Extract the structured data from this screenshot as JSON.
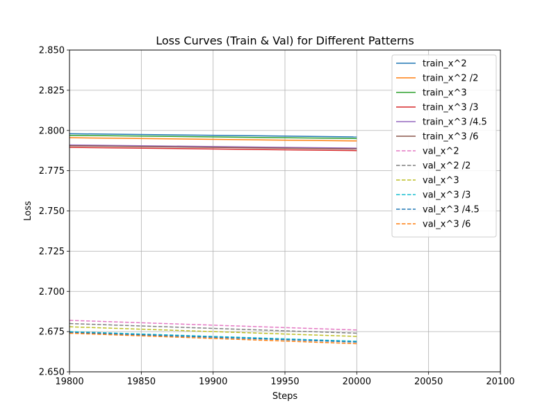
{
  "chart_data": {
    "type": "line",
    "title": "Loss Curves (Train & Val) for Different Patterns",
    "xlabel": "Steps",
    "ylabel": "Loss",
    "xlim": [
      19800,
      20100
    ],
    "ylim": [
      2.65,
      2.85
    ],
    "xticks": [
      19800,
      19850,
      19900,
      19950,
      20000,
      20050,
      20100
    ],
    "xtick_labels": [
      "19800",
      "19850",
      "19900",
      "19950",
      "20000",
      "20050",
      "20100"
    ],
    "yticks": [
      2.65,
      2.675,
      2.7,
      2.725,
      2.75,
      2.775,
      2.8,
      2.825,
      2.85
    ],
    "ytick_labels": [
      "2.650",
      "2.675",
      "2.700",
      "2.725",
      "2.750",
      "2.775",
      "2.800",
      "2.825",
      "2.850"
    ],
    "grid": true,
    "legend_position": "top-right",
    "series": [
      {
        "name": "train_x^2",
        "color": "#1f77b4",
        "dash": false,
        "x": [
          19800,
          20000
        ],
        "y": [
          2.798,
          2.796
        ]
      },
      {
        "name": "train_x^2 /2",
        "color": "#ff7f0e",
        "dash": false,
        "x": [
          19800,
          20000
        ],
        "y": [
          2.7955,
          2.7935
        ]
      },
      {
        "name": "train_x^3",
        "color": "#2ca02c",
        "dash": false,
        "x": [
          19800,
          20000
        ],
        "y": [
          2.797,
          2.795
        ]
      },
      {
        "name": "train_x^3 /3",
        "color": "#d62728",
        "dash": false,
        "x": [
          19800,
          20000
        ],
        "y": [
          2.7895,
          2.7875
        ]
      },
      {
        "name": "train_x^3 /4.5",
        "color": "#9467bd",
        "dash": false,
        "x": [
          19800,
          20000
        ],
        "y": [
          2.791,
          2.789
        ]
      },
      {
        "name": "train_x^3 /6",
        "color": "#8c564b",
        "dash": false,
        "x": [
          19800,
          20000
        ],
        "y": [
          2.7905,
          2.7885
        ]
      },
      {
        "name": "val_x^2",
        "color": "#e377c2",
        "dash": true,
        "x": [
          19800,
          20000
        ],
        "y": [
          2.682,
          2.676
        ]
      },
      {
        "name": "val_x^2 /2",
        "color": "#7f7f7f",
        "dash": true,
        "x": [
          19800,
          20000
        ],
        "y": [
          2.68,
          2.674
        ]
      },
      {
        "name": "val_x^3",
        "color": "#bcbd22",
        "dash": true,
        "x": [
          19800,
          20000
        ],
        "y": [
          2.678,
          2.672
        ]
      },
      {
        "name": "val_x^3 /3",
        "color": "#17becf",
        "dash": true,
        "x": [
          19800,
          20000
        ],
        "y": [
          2.675,
          2.669
        ]
      },
      {
        "name": "val_x^3 /4.5",
        "color": "#1f77b4",
        "dash": true,
        "x": [
          19800,
          20000
        ],
        "y": [
          2.6745,
          2.6685
        ]
      },
      {
        "name": "val_x^3 /6",
        "color": "#ff7f0e",
        "dash": true,
        "x": [
          19800,
          20000
        ],
        "y": [
          2.674,
          2.6675
        ]
      }
    ]
  }
}
